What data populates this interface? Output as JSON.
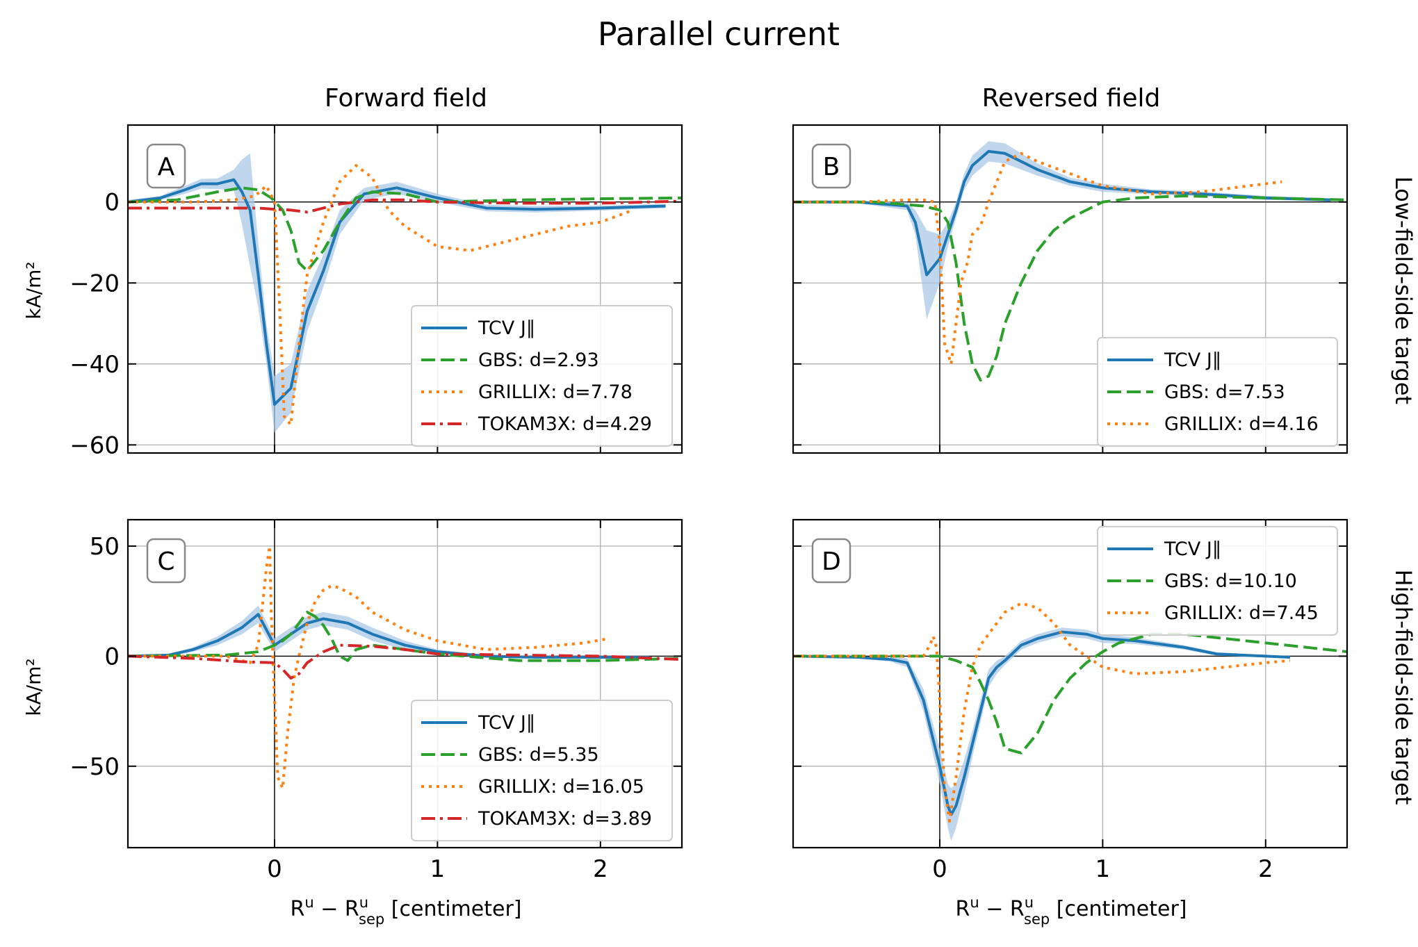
{
  "figure": {
    "title": "Parallel current",
    "col_titles": [
      "Forward field",
      "Reversed field"
    ],
    "row_titles": [
      "Low-field-side target",
      "High-field-side target"
    ],
    "ylabel": "kA/m²",
    "xlabel_main": "R",
    "xlabel_sup": "u",
    "xlabel_minus": " − R",
    "xlabel_sup2": "u",
    "xlabel_sub2": "sep",
    "xlabel_unit": " [centimeter]",
    "colors": {
      "TCV": "#1f77b4",
      "GBS": "#2ca02c",
      "GRILLIX": "#ff7f0e",
      "TOKAM3X": "#d62728",
      "band": "#aac8e6"
    }
  },
  "chart_data": [
    {
      "panel": "A",
      "type": "line",
      "xlim": [
        -0.9,
        2.5
      ],
      "ylim": [
        -62,
        19
      ],
      "yticks": [
        0,
        -20,
        -40,
        -60
      ],
      "xticks": [
        0,
        1,
        2
      ],
      "legend_position": "lower-right",
      "legend": [
        "TCV J∥",
        "GBS: d=2.93",
        "GRILLIX: d=7.78",
        "TOKAM3X: d=4.29"
      ],
      "series": [
        {
          "name": "TCV J∥",
          "style": "solid",
          "color": "TCV",
          "x": [
            -0.9,
            -0.7,
            -0.55,
            -0.45,
            -0.35,
            -0.25,
            -0.2,
            -0.15,
            -0.1,
            -0.05,
            0,
            0.1,
            0.2,
            0.3,
            0.4,
            0.55,
            0.75,
            1.0,
            1.3,
            1.6,
            2.0,
            2.4
          ],
          "y": [
            0,
            1,
            3,
            4.5,
            4.5,
            5.5,
            2.5,
            -2,
            -18,
            -35,
            -50,
            -46,
            -27,
            -17,
            -5,
            2,
            3.5,
            1,
            -1.5,
            -1.8,
            -1.5,
            -1
          ],
          "band": [
            0.5,
            0.5,
            1,
            1.2,
            1.3,
            2.5,
            8,
            14,
            8,
            5,
            7,
            6,
            5,
            4,
            3,
            1.5,
            1.5,
            1,
            0.8,
            0.8,
            0.6,
            0.5
          ]
        },
        {
          "name": "GBS: d=2.93",
          "style": "dashed",
          "color": "GBS",
          "x": [
            -0.9,
            -0.6,
            -0.35,
            -0.2,
            -0.1,
            -0.02,
            0.05,
            0.1,
            0.15,
            0.2,
            0.3,
            0.4,
            0.5,
            0.6,
            0.8,
            1.0,
            1.5,
            2.0,
            2.5
          ],
          "y": [
            0,
            0.5,
            2.5,
            3.5,
            3,
            1,
            -2,
            -7,
            -15,
            -17,
            -12,
            -5,
            1,
            2.5,
            2,
            0,
            0.5,
            0.8,
            1
          ]
        },
        {
          "name": "GRILLIX: d=7.78",
          "style": "dotted",
          "color": "GRILLIX",
          "x": [
            -0.9,
            -0.5,
            -0.25,
            -0.12,
            -0.05,
            0,
            0.03,
            0.06,
            0.1,
            0.15,
            0.2,
            0.3,
            0.4,
            0.5,
            0.6,
            0.7,
            0.8,
            1.0,
            1.2,
            1.5,
            1.8,
            2.0,
            2.2
          ],
          "y": [
            0,
            0,
            0.5,
            1.5,
            4,
            0,
            -25,
            -53,
            -55,
            -35,
            -18,
            -5,
            5,
            9,
            6,
            -2,
            -6,
            -11,
            -12,
            -9,
            -6,
            -5,
            -2
          ]
        },
        {
          "name": "TOKAM3X: d=4.29",
          "style": "dashdot",
          "color": "TOKAM3X",
          "x": [
            -0.9,
            -0.5,
            -0.1,
            0,
            0.1,
            0.2,
            0.3,
            0.4,
            0.6,
            0.8,
            1.0,
            1.5,
            2.0,
            2.5
          ],
          "y": [
            -1.5,
            -1.5,
            -1.5,
            -1.8,
            -2,
            -2.5,
            -1.5,
            -0.5,
            0.5,
            0.5,
            0,
            -0.3,
            -0.3,
            0.2
          ]
        }
      ]
    },
    {
      "panel": "B",
      "type": "line",
      "xlim": [
        -0.9,
        2.5
      ],
      "ylim": [
        -62,
        19
      ],
      "yticks": [
        0,
        -20,
        -40,
        -60
      ],
      "xticks": [
        0,
        1,
        2
      ],
      "legend_position": "lower-right",
      "legend": [
        "TCV J∥",
        "GBS: d=7.53",
        "GRILLIX: d=4.16"
      ],
      "series": [
        {
          "name": "TCV J∥",
          "style": "solid",
          "color": "TCV",
          "x": [
            -0.9,
            -0.5,
            -0.2,
            -0.15,
            -0.08,
            0,
            0.05,
            0.1,
            0.15,
            0.2,
            0.3,
            0.4,
            0.5,
            0.6,
            0.8,
            1.0,
            1.3,
            1.6,
            2.0,
            2.4
          ],
          "y": [
            0,
            0,
            -1,
            -5,
            -18,
            -14,
            -8,
            -2,
            5,
            9,
            12.5,
            12,
            10,
            8,
            5,
            3.5,
            2.5,
            2,
            1,
            0.5
          ],
          "band": [
            0.3,
            0.3,
            1,
            3,
            11,
            6,
            3,
            2,
            2,
            2.5,
            2.5,
            2.5,
            2,
            1.5,
            1,
            1,
            0.6,
            0.6,
            0.5,
            0.4
          ]
        },
        {
          "name": "GBS: d=7.53",
          "style": "dashed",
          "color": "GBS",
          "x": [
            -0.9,
            -0.4,
            -0.1,
            0,
            0.05,
            0.1,
            0.15,
            0.2,
            0.25,
            0.3,
            0.35,
            0.4,
            0.5,
            0.6,
            0.7,
            0.8,
            0.9,
            1.0,
            1.2,
            1.5,
            2.0,
            2.5
          ],
          "y": [
            0,
            0,
            -1,
            -2,
            -5,
            -15,
            -30,
            -40,
            -44,
            -43,
            -38,
            -30,
            -20,
            -12,
            -7,
            -4,
            -2,
            0,
            1,
            1.5,
            1,
            0.5
          ]
        },
        {
          "name": "GRILLIX: d=4.16",
          "style": "dotted",
          "color": "GRILLIX",
          "x": [
            -0.9,
            -0.5,
            -0.2,
            -0.1,
            -0.03,
            0,
            0.03,
            0.07,
            0.1,
            0.13,
            0.17,
            0.2,
            0.25,
            0.3,
            0.35,
            0.4,
            0.5,
            0.6,
            0.8,
            1.0,
            1.3,
            1.6,
            1.9,
            2.1
          ],
          "y": [
            0,
            0,
            0.5,
            0.5,
            0,
            -10,
            -35,
            -40,
            -30,
            -20,
            -15,
            -8,
            -6,
            0,
            5,
            10,
            12,
            10,
            7,
            4,
            2,
            2.5,
            4,
            5
          ]
        }
      ]
    },
    {
      "panel": "C",
      "type": "line",
      "xlim": [
        -0.9,
        2.5
      ],
      "ylim": [
        -87,
        62
      ],
      "yticks": [
        50,
        0,
        -50
      ],
      "xticks": [
        0,
        1,
        2
      ],
      "legend_position": "lower-right",
      "legend": [
        "TCV J∥",
        "GBS: d=5.35",
        "GRILLIX: d=16.05",
        "TOKAM3X: d=3.89"
      ],
      "series": [
        {
          "name": "TCV J∥",
          "style": "solid",
          "color": "TCV",
          "x": [
            -0.9,
            -0.65,
            -0.5,
            -0.35,
            -0.2,
            -0.1,
            0,
            0.1,
            0.2,
            0.3,
            0.45,
            0.6,
            0.8,
            1.0,
            1.3,
            1.6,
            2.0,
            2.3
          ],
          "y": [
            0,
            0.5,
            3,
            7,
            13,
            19,
            5,
            10,
            15,
            17,
            15,
            10,
            5,
            2,
            0,
            -0.5,
            -0.5,
            -0.5
          ],
          "band": [
            0.5,
            0.5,
            1,
            2,
            3,
            4,
            3,
            3,
            3,
            3,
            3,
            3,
            2,
            1,
            0.6,
            0.5,
            0.5,
            0.5
          ]
        },
        {
          "name": "GBS: d=5.35",
          "style": "dashed",
          "color": "GBS",
          "x": [
            -0.9,
            -0.3,
            -0.1,
            0,
            0.05,
            0.1,
            0.15,
            0.2,
            0.25,
            0.3,
            0.35,
            0.4,
            0.45,
            0.5,
            0.6,
            0.8,
            1.0,
            1.5,
            2.0,
            2.5
          ],
          "y": [
            0,
            0.5,
            2,
            5,
            7,
            10,
            15,
            20,
            18,
            14,
            8,
            0,
            -2,
            3,
            5,
            3,
            1,
            -2,
            -2,
            -1
          ]
        },
        {
          "name": "GRILLIX: d=16.05",
          "style": "dotted",
          "color": "GRILLIX",
          "x": [
            -0.9,
            -0.3,
            -0.15,
            -0.1,
            -0.05,
            -0.03,
            -0.02,
            0,
            0.02,
            0.05,
            0.08,
            0.12,
            0.15,
            0.2,
            0.25,
            0.3,
            0.35,
            0.4,
            0.5,
            0.6,
            0.8,
            1.0,
            1.3,
            1.6,
            1.9,
            2.05
          ],
          "y": [
            0,
            0,
            -3,
            5,
            40,
            50,
            20,
            -20,
            -55,
            -60,
            -35,
            -10,
            0,
            15,
            25,
            30,
            32,
            31,
            27,
            20,
            12,
            7,
            3,
            4,
            6,
            8
          ]
        },
        {
          "name": "TOKAM3X: d=3.89",
          "style": "dashdot",
          "color": "TOKAM3X",
          "x": [
            -0.9,
            -0.5,
            -0.2,
            0,
            0.05,
            0.1,
            0.15,
            0.2,
            0.3,
            0.4,
            0.6,
            0.8,
            1.0,
            1.5,
            2.0,
            2.5
          ],
          "y": [
            0,
            -1,
            -2.5,
            -3,
            -6,
            -10,
            -8,
            -3,
            2,
            5,
            4.5,
            3,
            1,
            0.5,
            0,
            -1.5
          ]
        }
      ]
    },
    {
      "panel": "D",
      "type": "line",
      "xlim": [
        -0.9,
        2.5
      ],
      "ylim": [
        -87,
        62
      ],
      "yticks": [
        50,
        0,
        -50
      ],
      "xticks": [
        0,
        1,
        2
      ],
      "legend_position": "upper-right",
      "legend": [
        "TCV J∥",
        "GBS: d=10.10",
        "GRILLIX: d=7.45"
      ],
      "series": [
        {
          "name": "TCV J∥",
          "style": "solid",
          "color": "TCV",
          "x": [
            -0.9,
            -0.5,
            -0.3,
            -0.2,
            -0.1,
            0,
            0.05,
            0.07,
            0.1,
            0.15,
            0.2,
            0.25,
            0.3,
            0.35,
            0.4,
            0.5,
            0.6,
            0.75,
            0.9,
            1.0,
            1.2,
            1.5,
            1.7,
            2.0,
            2.15
          ],
          "y": [
            0,
            -0.5,
            -1.5,
            -3,
            -20,
            -50,
            -68,
            -72,
            -68,
            -55,
            -40,
            -25,
            -10,
            -5,
            -2,
            5,
            8,
            11,
            10,
            8,
            7,
            4,
            1,
            0,
            -0.5
          ],
          "band": [
            0.5,
            0.5,
            1,
            2,
            5,
            8,
            10,
            12,
            10,
            8,
            6,
            5,
            4,
            3,
            2,
            2,
            2,
            2,
            2,
            2,
            1.5,
            1,
            0.8,
            0.5,
            0.5
          ]
        },
        {
          "name": "GBS: d=10.10",
          "style": "dashed",
          "color": "GBS",
          "x": [
            -0.9,
            -0.5,
            -0.1,
            0,
            0.1,
            0.2,
            0.25,
            0.3,
            0.35,
            0.4,
            0.5,
            0.6,
            0.7,
            0.8,
            0.9,
            1.0,
            1.1,
            1.3,
            1.5,
            2.0,
            2.5
          ],
          "y": [
            0,
            0,
            0,
            0,
            -2,
            -5,
            -12,
            -20,
            -30,
            -42,
            -44,
            -35,
            -20,
            -10,
            -3,
            2,
            6,
            10,
            10,
            6,
            2
          ]
        },
        {
          "name": "GRILLIX: d=7.45",
          "style": "dotted",
          "color": "GRILLIX",
          "x": [
            -0.9,
            -0.3,
            -0.1,
            -0.06,
            -0.04,
            -0.02,
            0,
            0.03,
            0.06,
            0.1,
            0.15,
            0.2,
            0.25,
            0.3,
            0.4,
            0.5,
            0.6,
            0.7,
            0.8,
            1.0,
            1.2,
            1.5,
            2.0,
            2.15
          ],
          "y": [
            0,
            0,
            0,
            5,
            9,
            4,
            -20,
            -60,
            -75,
            -55,
            -25,
            -5,
            5,
            10,
            20,
            24,
            22,
            15,
            5,
            -5,
            -8,
            -7,
            -3,
            -2
          ]
        }
      ]
    }
  ]
}
